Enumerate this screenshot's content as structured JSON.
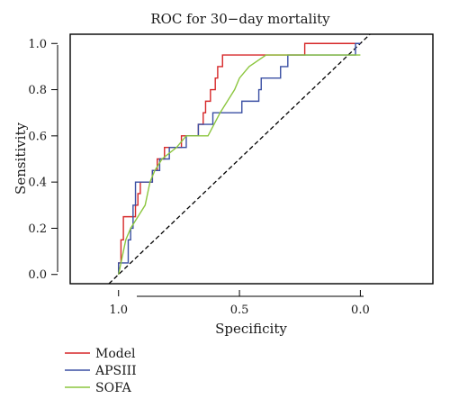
{
  "chart_data": {
    "type": "line",
    "title": "ROC for 30−day mortality",
    "xlabel": "Specificity",
    "ylabel": "Sensitivity",
    "x_reversed": true,
    "xlim": [
      1.2,
      -0.3
    ],
    "ylim": [
      -0.04,
      1.04
    ],
    "x_ticks": [
      {
        "value": 1.0,
        "label": "1.0"
      },
      {
        "value": 0.5,
        "label": "0.5"
      },
      {
        "value": 0.0,
        "label": "0.0"
      }
    ],
    "y_ticks": [
      {
        "value": 0.0,
        "label": "0.0"
      },
      {
        "value": 0.2,
        "label": "0.2"
      },
      {
        "value": 0.4,
        "label": "0.4"
      },
      {
        "value": 0.6,
        "label": "0.6"
      },
      {
        "value": 0.8,
        "label": "0.8"
      },
      {
        "value": 1.0,
        "label": "1.0"
      }
    ],
    "grid": false,
    "legend_position": "bottom-left",
    "reference_line": {
      "from": [
        1.0,
        0.0
      ],
      "to": [
        0.0,
        1.0
      ],
      "style": "dashed",
      "color": "#000000"
    },
    "series": [
      {
        "name": "Model",
        "color": "#d62728",
        "points": [
          [
            1.0,
            0.0
          ],
          [
            1.0,
            0.05
          ],
          [
            0.99,
            0.05
          ],
          [
            0.99,
            0.15
          ],
          [
            0.98,
            0.15
          ],
          [
            0.98,
            0.25
          ],
          [
            0.93,
            0.25
          ],
          [
            0.93,
            0.3
          ],
          [
            0.92,
            0.3
          ],
          [
            0.92,
            0.35
          ],
          [
            0.91,
            0.35
          ],
          [
            0.91,
            0.4
          ],
          [
            0.86,
            0.4
          ],
          [
            0.86,
            0.45
          ],
          [
            0.84,
            0.45
          ],
          [
            0.84,
            0.5
          ],
          [
            0.81,
            0.5
          ],
          [
            0.81,
            0.55
          ],
          [
            0.74,
            0.55
          ],
          [
            0.74,
            0.6
          ],
          [
            0.67,
            0.6
          ],
          [
            0.67,
            0.65
          ],
          [
            0.65,
            0.65
          ],
          [
            0.65,
            0.7
          ],
          [
            0.64,
            0.7
          ],
          [
            0.64,
            0.75
          ],
          [
            0.62,
            0.75
          ],
          [
            0.62,
            0.8
          ],
          [
            0.6,
            0.8
          ],
          [
            0.6,
            0.85
          ],
          [
            0.59,
            0.85
          ],
          [
            0.59,
            0.9
          ],
          [
            0.57,
            0.9
          ],
          [
            0.57,
            0.95
          ],
          [
            0.4,
            0.95
          ],
          [
            0.23,
            0.95
          ],
          [
            0.23,
            1.0
          ],
          [
            0.0,
            1.0
          ]
        ]
      },
      {
        "name": "APSIII",
        "color": "#3a4fa3",
        "points": [
          [
            1.0,
            0.0
          ],
          [
            1.0,
            0.05
          ],
          [
            0.96,
            0.05
          ],
          [
            0.96,
            0.15
          ],
          [
            0.95,
            0.15
          ],
          [
            0.95,
            0.2
          ],
          [
            0.94,
            0.2
          ],
          [
            0.94,
            0.3
          ],
          [
            0.93,
            0.3
          ],
          [
            0.93,
            0.4
          ],
          [
            0.86,
            0.4
          ],
          [
            0.86,
            0.45
          ],
          [
            0.83,
            0.45
          ],
          [
            0.83,
            0.5
          ],
          [
            0.79,
            0.5
          ],
          [
            0.79,
            0.55
          ],
          [
            0.72,
            0.55
          ],
          [
            0.72,
            0.6
          ],
          [
            0.67,
            0.6
          ],
          [
            0.67,
            0.65
          ],
          [
            0.61,
            0.65
          ],
          [
            0.61,
            0.7
          ],
          [
            0.49,
            0.7
          ],
          [
            0.49,
            0.75
          ],
          [
            0.42,
            0.75
          ],
          [
            0.42,
            0.8
          ],
          [
            0.41,
            0.8
          ],
          [
            0.41,
            0.85
          ],
          [
            0.33,
            0.85
          ],
          [
            0.33,
            0.9
          ],
          [
            0.3,
            0.9
          ],
          [
            0.3,
            0.95
          ],
          [
            0.02,
            0.95
          ],
          [
            0.02,
            1.0
          ],
          [
            0.0,
            1.0
          ]
        ]
      },
      {
        "name": "SOFA",
        "color": "#8cc63f",
        "points": [
          [
            1.0,
            0.0
          ],
          [
            0.97,
            0.15
          ],
          [
            0.95,
            0.2
          ],
          [
            0.92,
            0.25
          ],
          [
            0.89,
            0.3
          ],
          [
            0.87,
            0.4
          ],
          [
            0.85,
            0.45
          ],
          [
            0.82,
            0.5
          ],
          [
            0.76,
            0.55
          ],
          [
            0.72,
            0.6
          ],
          [
            0.63,
            0.6
          ],
          [
            0.58,
            0.7
          ],
          [
            0.55,
            0.75
          ],
          [
            0.52,
            0.8
          ],
          [
            0.5,
            0.85
          ],
          [
            0.46,
            0.9
          ],
          [
            0.39,
            0.95
          ],
          [
            0.0,
            0.95
          ]
        ]
      }
    ]
  }
}
